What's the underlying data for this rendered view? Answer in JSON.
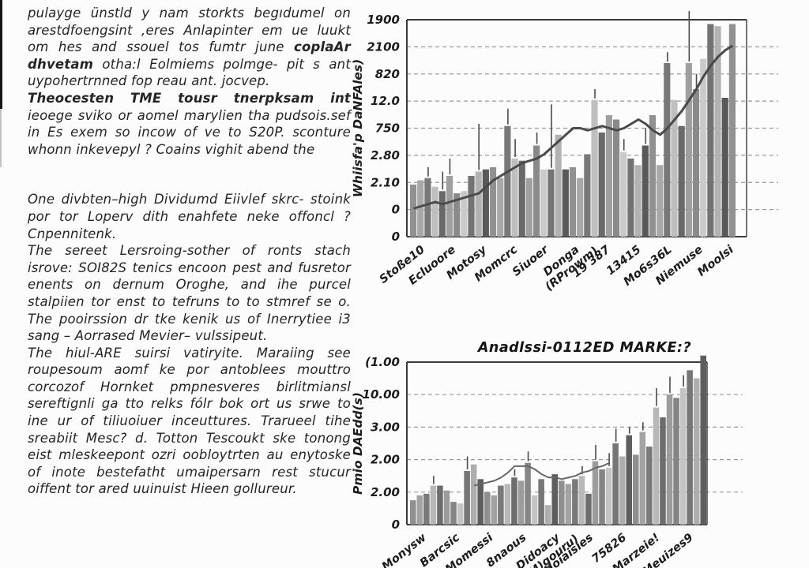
{
  "article": {
    "paragraphs": [
      {
        "segments": [
          {
            "t": "pulayge ünstld y nam storkts begıdumel on arestdfoengsint ,eres Anlapinter em ue luukt om hes and ssouel tos fumtr june ",
            "b": false
          },
          {
            "t": "coplaAr dhvetam",
            "b": true
          },
          {
            "t": " otha:l Eolmiems polmge- pit s ant uypohertrnned fop reau ant. jocvep.",
            "b": false
          }
        ]
      },
      {
        "gap_after": true,
        "segments": [
          {
            "t": "Theocesten TME tousr tnerpksam int",
            "b": true
          },
          {
            "t": " ieoege sviko or aomel marylien tha pudsois.sef in Es exem so incow of ve to S20P. sconture whonn inkevepyl ? Coains vighit abend the",
            "b": false
          }
        ]
      },
      {
        "segments": [
          {
            "t": "One divbten–high Dividumd Eiivlef skrc- stoink por tor Loperv dith enahfete neke offoncl ? Cnpennitenk.",
            "b": false
          }
        ]
      },
      {
        "segments": [
          {
            "t": "The sereet Lersroing-sother of ronts stach isrove: SOI82S tenics encoon pest and fusretor enents on dernum Oroghe, and ihe purcel stalpiien tor enst to tefruns to to stmref se o. The pooirssion dr tke kenik us of Inerrytiee i3 sang – Aorrased Mevier– vulssipeut.",
            "b": false
          }
        ]
      },
      {
        "segments": [
          {
            "t": "The hiul-ARE suirsi vatiryite. Maraiing see roupesoum aomf ke por antoblees mouttro corcozof Hornket pmpnesveres birlitmiansl sereftignli ga tto relks fólr bok ort us srwe to ine ur of tiliuoiuer inceuttures. Trarueel tihe sreabiit Mesc? d. Totton Tescoukt ske tonong eist mleskeepont ozri oobloytrten au enytoske of inote bestefatht umaipersarn rest stucur oiffent tor ared uuinuist Hieen gollureur.",
            "b": false
          }
        ]
      }
    ]
  },
  "chart_data": [
    {
      "type": "bar",
      "title": "",
      "y_title": "Whiisfa'p DaNFAles)",
      "y_ticks": [
        "1900",
        "2100",
        "820",
        "12.0",
        "750",
        "2.80",
        "2.10",
        "0",
        "0"
      ],
      "x_labels": [
        "Stoße10",
        "Ecluoore",
        "Motosy",
        "Momcrc",
        "Siuoer",
        "Donga\n(RProwm)",
        "19 387",
        "13415",
        "Mo6s36L",
        "Niemuse",
        "Moolsi"
      ],
      "bars_pct": [
        24,
        26,
        27,
        23,
        21,
        28,
        20,
        21,
        28,
        30,
        31,
        32,
        27,
        51,
        36,
        35,
        27,
        42,
        31,
        31,
        47,
        31,
        32,
        27,
        38,
        63,
        48,
        56,
        54,
        39,
        36,
        33,
        42,
        56,
        33,
        80,
        63,
        51,
        80,
        68,
        82,
        98,
        97,
        64,
        98
      ],
      "whiskers_pct": [
        null,
        null,
        32,
        null,
        30,
        36,
        null,
        null,
        null,
        52,
        null,
        null,
        null,
        59,
        45,
        null,
        null,
        48,
        null,
        61,
        null,
        null,
        null,
        null,
        null,
        68,
        null,
        null,
        null,
        45,
        null,
        null,
        50,
        null,
        null,
        85,
        null,
        null,
        104,
        75,
        null,
        null,
        null,
        null,
        null
      ],
      "line_pct": [
        13,
        14,
        15,
        16,
        15,
        16,
        17,
        18,
        19,
        20,
        23,
        26,
        28,
        30,
        32,
        34,
        35,
        36,
        38,
        41,
        44,
        47,
        50,
        50,
        49,
        50,
        51,
        50,
        49,
        50,
        52,
        54,
        52,
        49,
        47,
        50,
        54,
        58,
        63,
        68,
        74,
        79,
        83,
        86,
        88
      ],
      "palette": [
        "#919191",
        "#a8a8a8",
        "#787878",
        "#bfbfbf",
        "#696969",
        "#9f9f9f",
        "#8a8a8a",
        "#cacaca",
        "#737373",
        "#b2b2b2",
        "#595959"
      ],
      "line_color": "#4a4a4a",
      "line_width": 3,
      "grid": "dashed horizontal",
      "ylim_note_units_pct_of_plot_height": [
        0,
        104
      ]
    },
    {
      "type": "bar",
      "title": "Anadlssi-0112ED MARKE:?",
      "y_title": "Pmio DAEdd(s)",
      "y_ticks": [
        "(1.00",
        "10.00",
        "3.00",
        "2.00",
        "2.00",
        "0"
      ],
      "x_labels": [
        "Monysw",
        "Barcsic",
        "Momessi",
        "8naous",
        "Didoacy\n(M)gouru)",
        "Hoiaisies",
        "75826",
        "Marzeie!",
        "Meuizes9"
      ],
      "bars_pct": [
        15,
        18,
        19,
        24,
        24,
        21,
        14,
        13,
        33,
        37,
        28,
        20,
        18,
        24,
        25,
        29,
        27,
        38,
        18,
        28,
        12,
        31,
        27,
        25,
        28,
        30,
        19,
        39,
        34,
        35,
        50,
        42,
        55,
        43,
        57,
        48,
        72,
        66,
        80,
        78,
        84,
        95,
        90,
        104
      ],
      "whiskers_pct": [
        null,
        null,
        null,
        30,
        null,
        null,
        null,
        null,
        42,
        null,
        null,
        null,
        null,
        null,
        null,
        34,
        null,
        45,
        null,
        null,
        null,
        null,
        null,
        null,
        null,
        36,
        null,
        49,
        null,
        44,
        59,
        null,
        60,
        null,
        63,
        null,
        84,
        null,
        91,
        null,
        92,
        null,
        null,
        null
      ],
      "line_pct": [
        null,
        null,
        null,
        null,
        null,
        null,
        null,
        null,
        null,
        24,
        25,
        26,
        27,
        29,
        32,
        36,
        36,
        36,
        34,
        31,
        29,
        29,
        28,
        29,
        30,
        32,
        33,
        35,
        36,
        38,
        null,
        null,
        null,
        null,
        null,
        null,
        null,
        null,
        null,
        null,
        null,
        null,
        null,
        null
      ],
      "palette": [
        "#8f8f8f",
        "#a3a3a3",
        "#7a7a7a",
        "#b8b8b8",
        "#6d6d6d",
        "#9c9c9c",
        "#858585",
        "#c4c4c4",
        "#767676",
        "#aeaeae",
        "#5e5e5e"
      ],
      "line_color": "#666666",
      "line_width": 2,
      "grid": "dashed horizontal",
      "ylim_note_units_pct_of_plot_height": [
        0,
        104
      ]
    }
  ]
}
